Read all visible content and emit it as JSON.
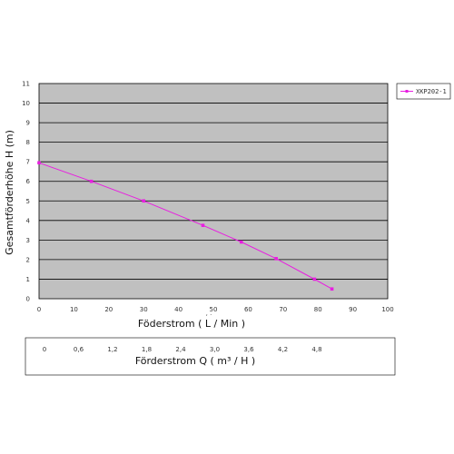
{
  "chart_data": [
    {
      "type": "line",
      "x": [
        0,
        15,
        30,
        47,
        58,
        68,
        79,
        84
      ],
      "series": [
        {
          "name": "XKP202-1",
          "values": [
            6.95,
            6.0,
            5.0,
            3.75,
            2.9,
            2.05,
            1.0,
            0.5
          ],
          "color": "#e81ee0"
        }
      ],
      "xlabel": "Föderstrom ( L / Min )",
      "ylabel": "Gesamtförderhöhe  H (m)",
      "xlim": [
        0,
        100
      ],
      "ylim": [
        0,
        11
      ],
      "x_ticks": [
        0,
        10,
        20,
        30,
        40,
        50,
        60,
        70,
        80,
        90,
        100
      ],
      "y_ticks": [
        0,
        1,
        2,
        3,
        4,
        5,
        6,
        7,
        8,
        9,
        10,
        11
      ],
      "grid": "horizontal",
      "legend_position": "right",
      "plot_background": "#c0c0c0"
    },
    {
      "type": "table",
      "title": "Förderstrom Q ( m³ / H )",
      "values": [
        "0",
        "0,6",
        "1,2",
        "1,8",
        "2,4",
        "3,0",
        "3,6",
        "4,2",
        "4,8"
      ]
    }
  ],
  "stray_mark": ", ."
}
